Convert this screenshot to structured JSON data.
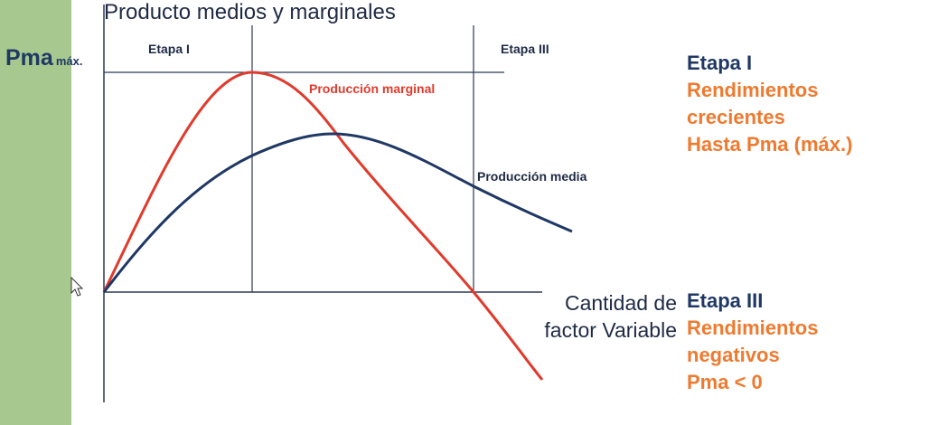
{
  "title": "Producto medios y marginales",
  "pma_label": {
    "main": "Pma",
    "sub": "máx."
  },
  "stage_tags": [
    "Etapa I",
    "Etapa III"
  ],
  "curve_labels": {
    "marginal": "Producción marginal",
    "media": "Producción media"
  },
  "x_axis_label": [
    "Cantidad de",
    "factor Variable"
  ],
  "notes": [
    {
      "head": "Etapa I",
      "lines": [
        "Rendimientos",
        "crecientes",
        "Hasta Pma (máx.)"
      ]
    },
    {
      "head": "Etapa III",
      "lines": [
        "Rendimientos",
        "negativos",
        "Pma < 0"
      ]
    }
  ],
  "colors": {
    "marginal": "#e03a2c",
    "media": "#1f3864",
    "green_band": "#a7c98f",
    "note_orange": "#ee7a2f",
    "axes": "#2b3a55"
  },
  "icons": [
    "mouse-pointer-icon"
  ]
}
